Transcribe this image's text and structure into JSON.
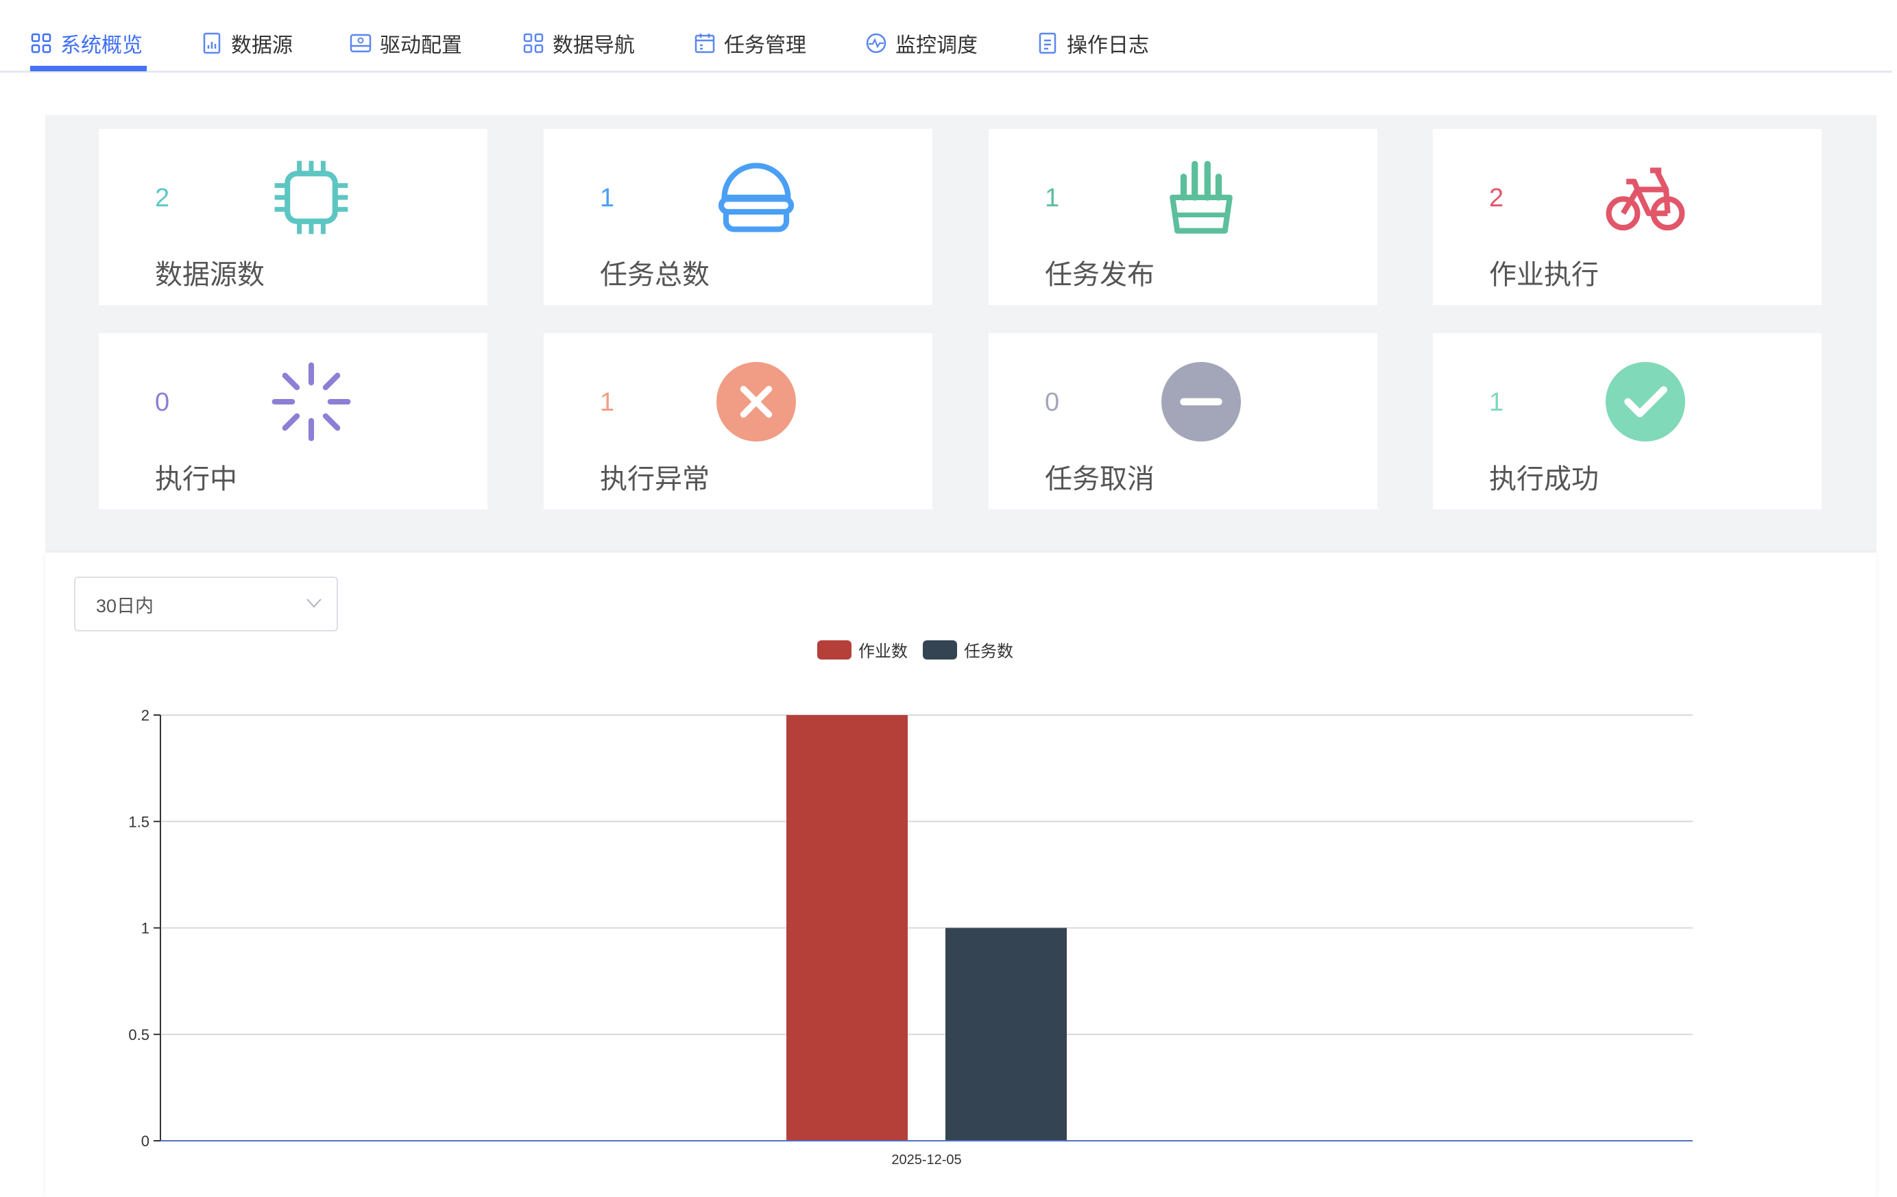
{
  "tabs": [
    {
      "label": "系统概览",
      "icon": "grid-icon",
      "active": true
    },
    {
      "label": "数据源",
      "icon": "report-icon"
    },
    {
      "label": "驱动配置",
      "icon": "drive-icon"
    },
    {
      "label": "数据导航",
      "icon": "grid-icon"
    },
    {
      "label": "任务管理",
      "icon": "calendar-icon"
    },
    {
      "label": "监控调度",
      "icon": "monitor-icon"
    },
    {
      "label": "操作日志",
      "icon": "document-icon"
    }
  ],
  "cards": [
    {
      "value": "2",
      "label": "数据源数",
      "icon": "cpu-icon",
      "color": "#5ec6c2"
    },
    {
      "value": "1",
      "label": "任务总数",
      "icon": "burger-icon",
      "color": "#4a9ff5"
    },
    {
      "value": "1",
      "label": "任务发布",
      "icon": "fries-icon",
      "color": "#5cbf9b"
    },
    {
      "value": "2",
      "label": "作业执行",
      "icon": "bicycle-icon",
      "color": "#e2566a"
    },
    {
      "value": "0",
      "label": "执行中",
      "icon": "loading-icon",
      "color": "#8c7fd6"
    },
    {
      "value": "1",
      "label": "执行异常",
      "icon": "error-icon",
      "color": "#f19c85"
    },
    {
      "value": "0",
      "label": "任务取消",
      "icon": "remove-icon",
      "color": "#a2a6b8"
    },
    {
      "value": "1",
      "label": "执行成功",
      "icon": "success-icon",
      "color": "#80d9b8"
    }
  ],
  "filter": {
    "value": "30日内"
  },
  "chart_data": {
    "type": "bar",
    "categories": [
      "2025-12-05"
    ],
    "series": [
      {
        "name": "作业数",
        "values": [
          2
        ],
        "color": "#b5403a"
      },
      {
        "name": "任务数",
        "values": [
          1
        ],
        "color": "#344453"
      }
    ],
    "ylim": [
      0,
      2
    ],
    "yticks": [
      "0",
      "0.5",
      "1",
      "1.5",
      "2"
    ],
    "grid": true,
    "legend": "top"
  }
}
